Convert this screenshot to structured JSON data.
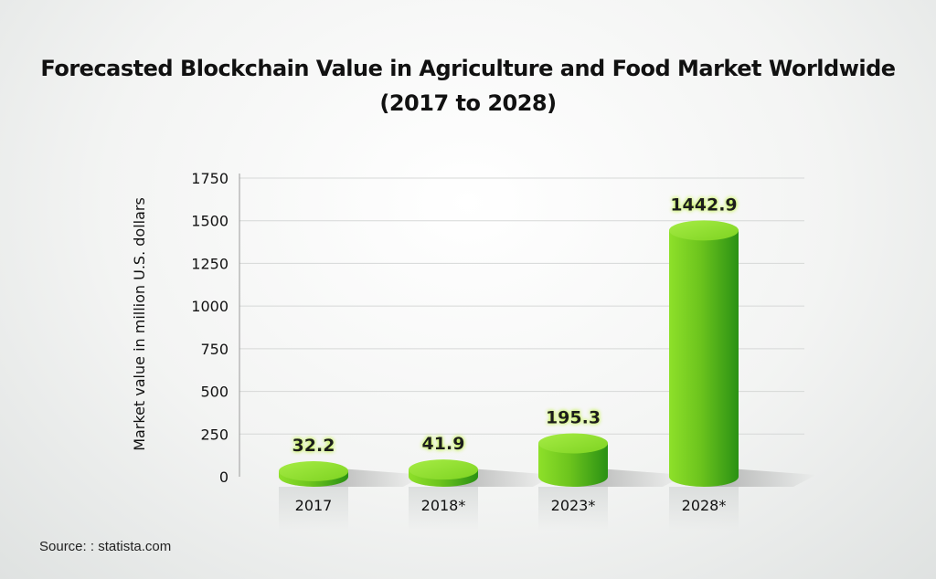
{
  "chart_data": {
    "type": "bar",
    "title_lines": [
      "Forecasted Blockchain Value in Agriculture and Food Market Worldwide",
      "(2017 to 2028)"
    ],
    "ylabel": "Market value in million U.S. dollars",
    "xlabel": "",
    "categories": [
      "2017",
      "2018*",
      "2023*",
      "2028*"
    ],
    "values": [
      32.2,
      41.9,
      195.3,
      1442.9
    ],
    "value_labels": [
      "32.2",
      "41.9",
      "195.3",
      "1442.9"
    ],
    "ylim": [
      0,
      1750
    ],
    "yticks": [
      0,
      250,
      500,
      750,
      1000,
      1250,
      1500,
      1750
    ],
    "grid": true,
    "legend": "none",
    "bar_color": "#7ed321",
    "bar_dark": "#2f9a14",
    "bar_top": "#9be83a"
  },
  "source": "Source: : statista.com"
}
